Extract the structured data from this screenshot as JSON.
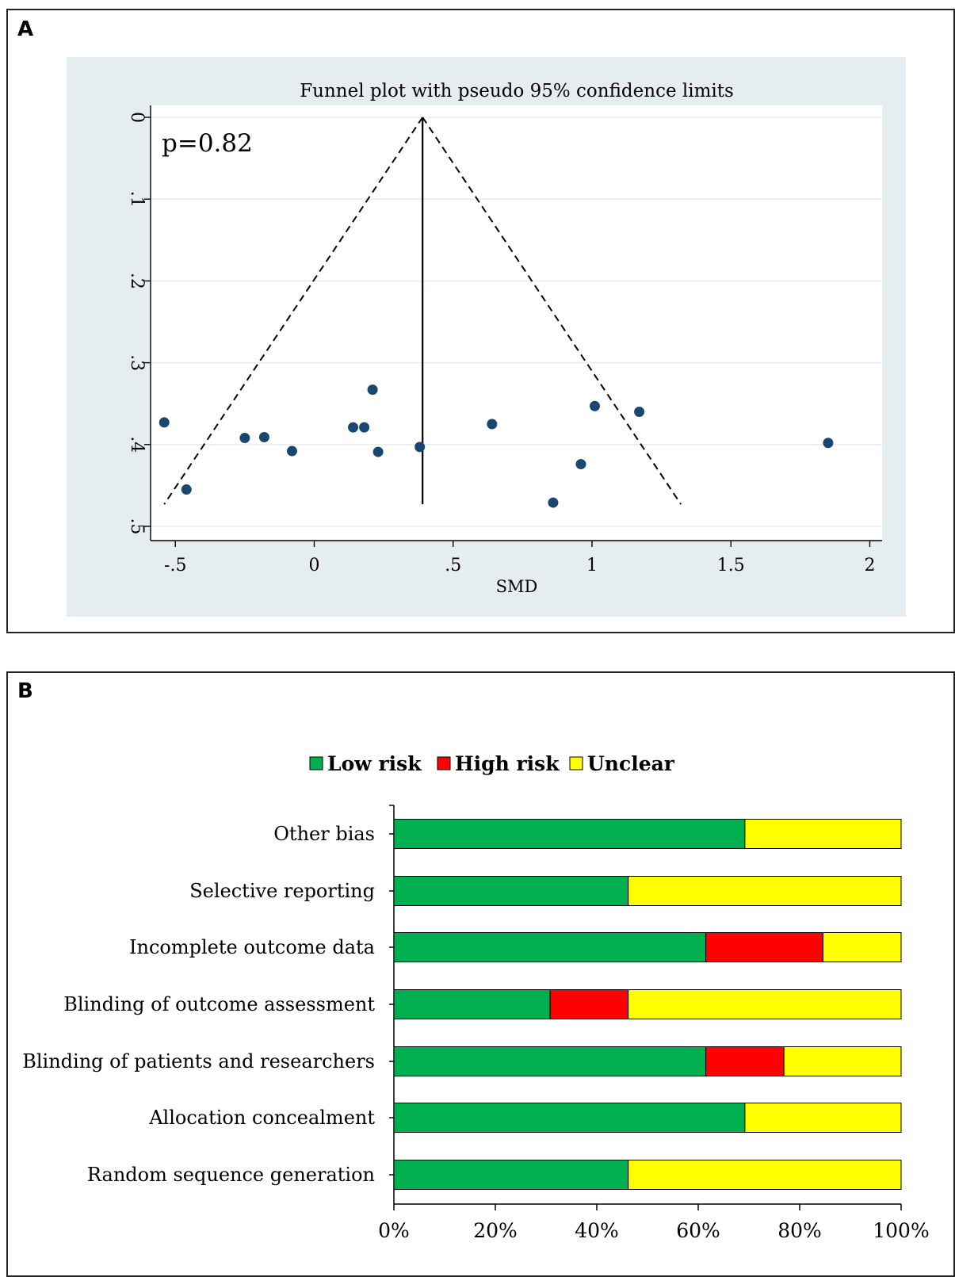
{
  "panel_a_letter": "A",
  "panel_b_letter": "B",
  "chart_data": [
    {
      "type": "scatter",
      "title": "Funnel plot with pseudo 95% confidence limits",
      "annotation": "p=0.82",
      "xlabel": "SMD",
      "ylabel": "",
      "xlim": [
        -0.58,
        2.05
      ],
      "ylim": [
        0.5,
        0
      ],
      "y_reversed": true,
      "xticks": [
        -0.5,
        0,
        0.5,
        1,
        1.5,
        2
      ],
      "xtick_labels": [
        "-.5",
        "0",
        ".5",
        "1",
        "1.5",
        "2"
      ],
      "yticks": [
        0,
        0.1,
        0.2,
        0.3,
        0.4,
        0.5
      ],
      "ytick_labels": [
        "0",
        ".1",
        ".2",
        ".3",
        ".4",
        ".5"
      ],
      "grid": true,
      "background_color": "#e5edf0",
      "point_color": "#1a476f",
      "pooled_smd": 0.39,
      "pseudo_ci_limits": {
        "apex": [
          0.39,
          0
        ],
        "lower_left": [
          -0.54,
          0.473
        ],
        "lower_right": [
          1.32,
          0.473
        ]
      },
      "points": [
        {
          "x": -0.54,
          "y": 0.373
        },
        {
          "x": -0.46,
          "y": 0.455
        },
        {
          "x": -0.25,
          "y": 0.392
        },
        {
          "x": -0.18,
          "y": 0.391
        },
        {
          "x": -0.08,
          "y": 0.408
        },
        {
          "x": 0.14,
          "y": 0.379
        },
        {
          "x": 0.18,
          "y": 0.379
        },
        {
          "x": 0.21,
          "y": 0.333
        },
        {
          "x": 0.23,
          "y": 0.409
        },
        {
          "x": 0.38,
          "y": 0.403
        },
        {
          "x": 0.64,
          "y": 0.375
        },
        {
          "x": 0.86,
          "y": 0.471
        },
        {
          "x": 0.96,
          "y": 0.424
        },
        {
          "x": 1.01,
          "y": 0.353
        },
        {
          "x": 1.17,
          "y": 0.36
        },
        {
          "x": 1.85,
          "y": 0.398
        }
      ]
    },
    {
      "type": "bar",
      "orientation": "horizontal",
      "stacked": true,
      "legend_placement": "top",
      "categories": [
        "Other bias",
        "Selective reporting",
        "Incomplete outcome data",
        "Blinding of outcome assessment",
        "Blinding of patients and researchers",
        "Allocation concealment",
        "Random sequence generation"
      ],
      "series": [
        {
          "name": "Low risk",
          "color": "#00b050",
          "values": [
            69.2,
            46.2,
            61.5,
            30.8,
            61.5,
            69.2,
            46.2
          ]
        },
        {
          "name": "High risk",
          "color": "#ff0000",
          "values": [
            0,
            0,
            23.1,
            15.4,
            15.4,
            0,
            0
          ]
        },
        {
          "name": "Unclear",
          "color": "#ffff00",
          "values": [
            30.8,
            53.8,
            15.4,
            53.8,
            23.1,
            30.8,
            53.8
          ]
        }
      ],
      "xlim": [
        0,
        100
      ],
      "xtick_labels": [
        "0%",
        "20%",
        "40%",
        "60%",
        "80%",
        "100%"
      ]
    }
  ]
}
